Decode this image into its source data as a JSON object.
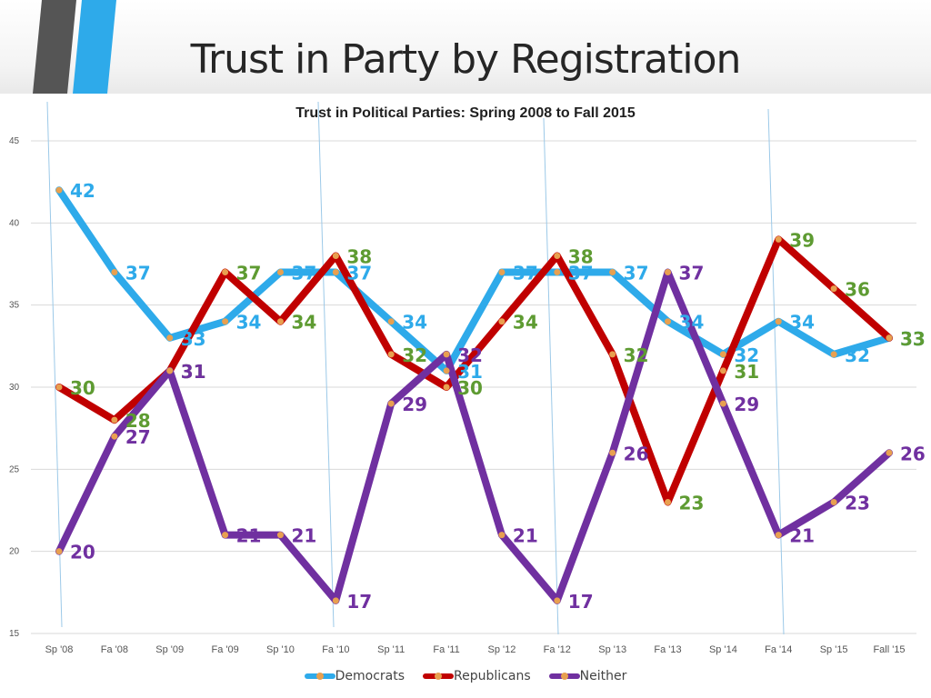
{
  "slide": {
    "title": "Trust in Party by Registration"
  },
  "chart_data": {
    "type": "line",
    "title": "Trust in Political Parties: Spring 2008 to Fall 2015",
    "categories": [
      "Sp '08",
      "Fa '08",
      "Sp '09",
      "Fa '09",
      "Sp '10",
      "Fa '10",
      "Sp '11",
      "Fa '11",
      "Sp '12",
      "Fa '12",
      "Sp '13",
      "Fa '13",
      "Sp '14",
      "Fa '14",
      "Sp '15",
      "Fall '15"
    ],
    "ylim": [
      15,
      45
    ],
    "yticks": [
      15,
      20,
      25,
      30,
      35,
      40,
      45
    ],
    "grid": true,
    "legend_position": "bottom",
    "series": [
      {
        "name": "Democrats",
        "color": "#2eaaea",
        "label_color": "#2eaaea",
        "values": [
          42,
          37,
          33,
          34,
          37,
          37,
          34,
          31,
          37,
          37,
          37,
          34,
          32,
          34,
          32,
          33
        ]
      },
      {
        "name": "Republicans",
        "color": "#c00000",
        "label_color": "#5e9b32",
        "values": [
          30,
          28,
          31,
          37,
          34,
          38,
          32,
          30,
          34,
          38,
          32,
          23,
          31,
          39,
          36,
          33
        ]
      },
      {
        "name": "Neither",
        "color": "#7030a0",
        "label_color": "#7030a0",
        "values": [
          20,
          27,
          31,
          21,
          21,
          17,
          29,
          32,
          21,
          17,
          26,
          37,
          29,
          21,
          23,
          26
        ]
      }
    ]
  },
  "colors": {
    "marker": "#e8a050",
    "grid": "#d9d9d9",
    "accent_stripe_dark": "#555555",
    "accent_stripe_blue": "#2eaaea"
  }
}
